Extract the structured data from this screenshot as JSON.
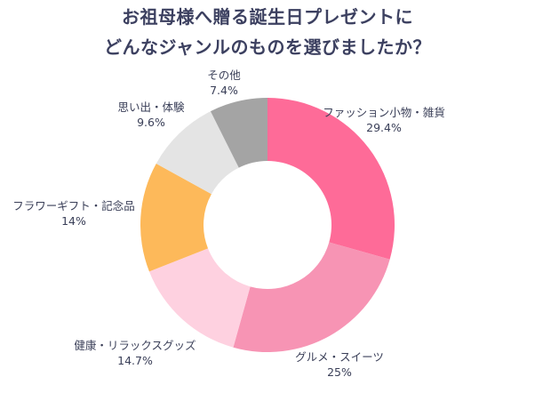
{
  "chart_data": {
    "type": "pie",
    "title_lines": [
      "お祖母様へ贈る誕生日プレゼントに",
      "どんなジャンルのものを選びましたか？"
    ],
    "slices": [
      {
        "label": "ファッション小物・雑貨",
        "value": 29.4,
        "value_label": "29.4%",
        "color": "#fe6b98"
      },
      {
        "label": "グルメ・スイーツ",
        "value": 25,
        "value_label": "25%",
        "color": "#f794b4"
      },
      {
        "label": "健康・リラックスグッズ",
        "value": 14.7,
        "value_label": "14.7%",
        "color": "#fed1e0"
      },
      {
        "label": "フラワーギフト・記念品",
        "value": 14,
        "value_label": "14%",
        "color": "#fdb95a"
      },
      {
        "label": "思い出・体験",
        "value": 9.6,
        "value_label": "9.6%",
        "color": "#e4e4e4"
      },
      {
        "label": "その他",
        "value": 7.4,
        "value_label": "7.4%",
        "color": "#a4a4a4"
      }
    ],
    "donut": true,
    "start": "top",
    "direction": "clockwise"
  }
}
